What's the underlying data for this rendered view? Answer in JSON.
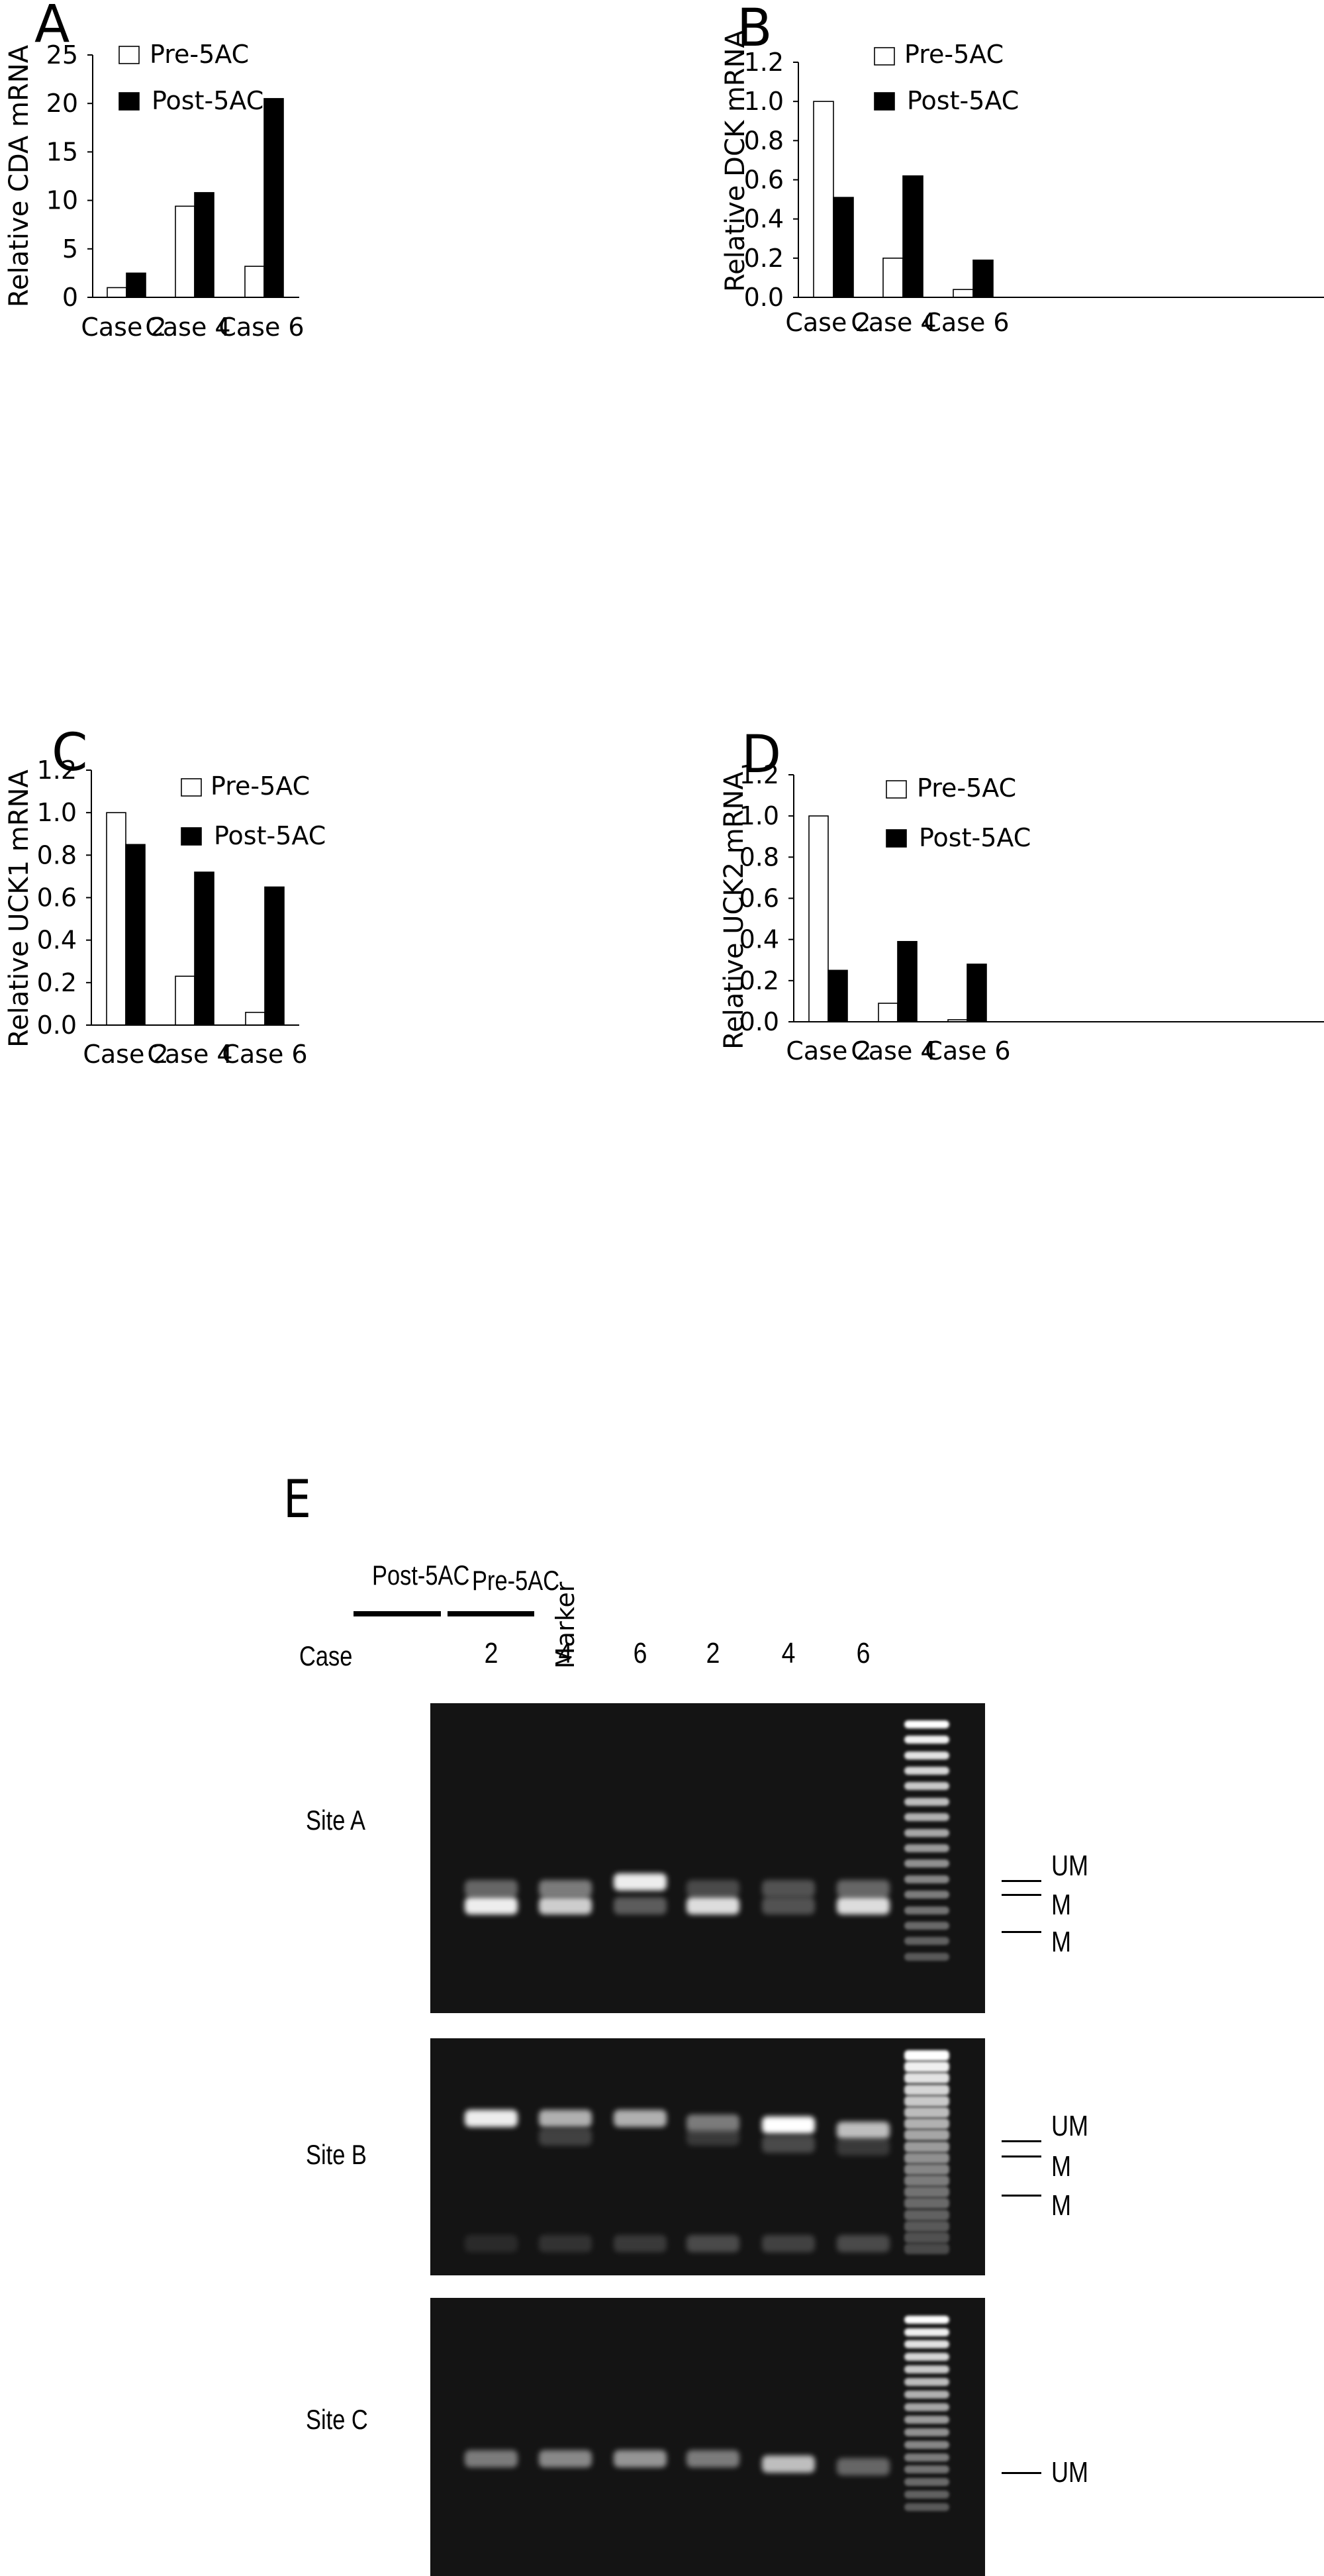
{
  "panels": {
    "A": {
      "letter": "A"
    },
    "B": {
      "letter": "B"
    },
    "C": {
      "letter": "C"
    },
    "D": {
      "letter": "D"
    },
    "E": {
      "letter": "E"
    }
  },
  "legend": {
    "pre": "Pre-5AC",
    "post": "Post-5AC"
  },
  "colors": {
    "pre_fill": "#ffffff",
    "post_fill": "#000000",
    "axis": "#000000",
    "gel_bg": "#141414"
  },
  "chart_data": [
    {
      "panel": "A",
      "type": "bar",
      "title": "",
      "xlabel": "",
      "ylabel": "Relative CDA mRNA",
      "categories": [
        "Case 2",
        "Case 4",
        "Case 6"
      ],
      "series": [
        {
          "name": "Pre-5AC",
          "values": [
            1.0,
            9.4,
            3.2
          ]
        },
        {
          "name": "Post-5AC",
          "values": [
            2.5,
            10.8,
            20.5
          ]
        }
      ],
      "ylim": [
        0,
        25
      ],
      "yticks": [
        "0",
        "5",
        "10",
        "15",
        "20",
        "25"
      ],
      "grid": false,
      "legend_position": "top-left inside"
    },
    {
      "panel": "B",
      "type": "bar",
      "title": "",
      "xlabel": "",
      "ylabel": "Relative DCK mRNA",
      "categories": [
        "Case 2",
        "Case 4",
        "Case 6"
      ],
      "series": [
        {
          "name": "Pre-5AC",
          "values": [
            1.0,
            0.2,
            0.04
          ]
        },
        {
          "name": "Post-5AC",
          "values": [
            0.51,
            0.62,
            0.19
          ]
        }
      ],
      "ylim": [
        0,
        1.2
      ],
      "yticks": [
        "0.0",
        "0.2",
        "0.4",
        "0.6",
        "0.8",
        "1.0",
        "1.2"
      ],
      "grid": false,
      "legend_position": "top-right inside"
    },
    {
      "panel": "C",
      "type": "bar",
      "title": "",
      "xlabel": "",
      "ylabel": "Relative UCK1 mRNA",
      "categories": [
        "Case 2",
        "Case 4",
        "Case 6"
      ],
      "series": [
        {
          "name": "Pre-5AC",
          "values": [
            1.0,
            0.23,
            0.06
          ]
        },
        {
          "name": "Post-5AC",
          "values": [
            0.85,
            0.72,
            0.65
          ]
        }
      ],
      "ylim": [
        0,
        1.2
      ],
      "yticks": [
        "0.0",
        "0.2",
        "0.4",
        "0.6",
        "0.8",
        "1.0",
        "1.2"
      ],
      "grid": false,
      "legend_position": "top-right inside"
    },
    {
      "panel": "D",
      "type": "bar",
      "title": "",
      "xlabel": "",
      "ylabel": "Relative UCK2 mRNA",
      "categories": [
        "Case 2",
        "Case 4",
        "Case 6"
      ],
      "series": [
        {
          "name": "Pre-5AC",
          "values": [
            1.0,
            0.09,
            0.01
          ]
        },
        {
          "name": "Post-5AC",
          "values": [
            0.25,
            0.39,
            0.28
          ]
        }
      ],
      "ylim": [
        0,
        1.2
      ],
      "yticks": [
        "0.0",
        "0.2",
        "0.4",
        "0.6",
        "0.8",
        "1.0",
        "1.2"
      ],
      "grid": false,
      "legend_position": "top-right inside"
    }
  ],
  "gel": {
    "group_labels": [
      "Post-5AC",
      "Pre-5AC"
    ],
    "case_label": "Case",
    "lanes": [
      "2",
      "4",
      "6",
      "2",
      "4",
      "6"
    ],
    "marker_label": "Marker",
    "sites": [
      {
        "label": "Site A",
        "band_labels": [
          "UM",
          "M",
          "M"
        ]
      },
      {
        "label": "Site B",
        "band_labels": [
          "UM",
          "M",
          "M"
        ]
      },
      {
        "label": "Site C",
        "band_labels": [
          "UM"
        ]
      }
    ]
  }
}
